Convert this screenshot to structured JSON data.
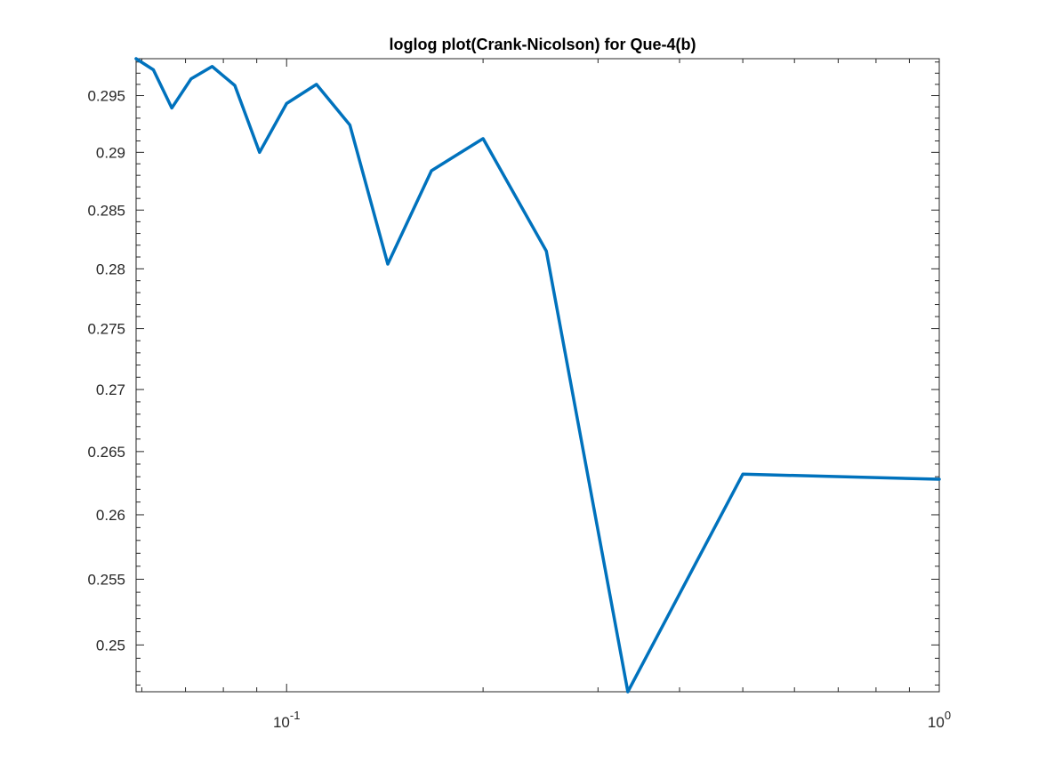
{
  "chart_data": {
    "type": "line",
    "title": "loglog plot(Crank-Nicolson) for Que-4(b)",
    "xlabel": "",
    "ylabel": "",
    "xscale": "log",
    "yscale": "log",
    "xlim": [
      0.0588,
      1.0
    ],
    "ylim": [
      0.2465,
      0.2983
    ],
    "grid": false,
    "legend": "none",
    "line_color": "#0072BD",
    "x_major_ticks": [
      {
        "value": 0.1,
        "base": "10",
        "exp": "-1"
      },
      {
        "value": 1.0,
        "base": "10",
        "exp": "0"
      }
    ],
    "y_ticks": [
      {
        "value": 0.25,
        "label": "0.25"
      },
      {
        "value": 0.255,
        "label": "0.255"
      },
      {
        "value": 0.26,
        "label": "0.26"
      },
      {
        "value": 0.265,
        "label": "0.265"
      },
      {
        "value": 0.27,
        "label": "0.27"
      },
      {
        "value": 0.275,
        "label": "0.275"
      },
      {
        "value": 0.28,
        "label": "0.28"
      },
      {
        "value": 0.285,
        "label": "0.285"
      },
      {
        "value": 0.29,
        "label": "0.29"
      },
      {
        "value": 0.295,
        "label": "0.295"
      }
    ],
    "series": [
      {
        "name": "",
        "x": [
          0.0588,
          0.0625,
          0.0667,
          0.0714,
          0.0769,
          0.0833,
          0.0909,
          0.1,
          0.1111,
          0.125,
          0.1429,
          0.1667,
          0.2,
          0.25,
          0.3333,
          0.5,
          1.0
        ],
        "y": [
          0.2983,
          0.2973,
          0.2939,
          0.2965,
          0.2976,
          0.2959,
          0.29,
          0.2943,
          0.296,
          0.2924,
          0.2804,
          0.2884,
          0.2912,
          0.2815,
          0.2465,
          0.2632,
          0.2628
        ]
      }
    ]
  }
}
